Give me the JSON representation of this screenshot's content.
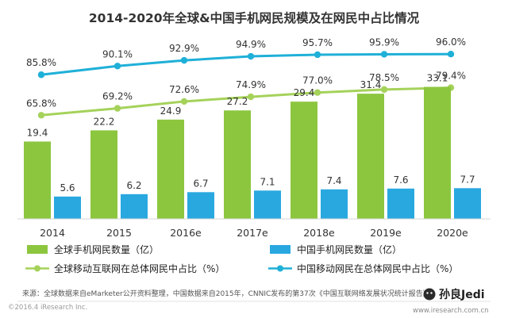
{
  "chart_data": {
    "type": "bar",
    "title": "2014-2020年全球&中国手机网民规模及在网民中占比情况",
    "categories": [
      "2014",
      "2015",
      "2016e",
      "2017e",
      "2018e",
      "2019e",
      "2020e"
    ],
    "series": [
      {
        "name": "全球手机网民数量（亿）",
        "kind": "bar",
        "color": "#8cc63f",
        "values": [
          19.4,
          22.2,
          24.9,
          27.2,
          29.4,
          31.4,
          33.1
        ],
        "labels": [
          "19.4",
          "22.2",
          "24.9",
          "27.2",
          "29.4",
          "31.4",
          "33.1"
        ]
      },
      {
        "name": "中国手机网民数量（亿）",
        "kind": "bar",
        "color": "#29a8e0",
        "values": [
          5.6,
          6.2,
          6.7,
          7.1,
          7.4,
          7.6,
          7.7
        ],
        "labels": [
          "5.6",
          "6.2",
          "6.7",
          "7.1",
          "7.4",
          "7.6",
          "7.7"
        ]
      },
      {
        "name": "全球移动互联网在总体网民中占比（%）",
        "kind": "line",
        "color": "#a5d25a",
        "values": [
          65.8,
          69.2,
          72.6,
          74.9,
          77.0,
          78.5,
          79.4
        ],
        "labels": [
          "65.8%",
          "69.2%",
          "72.6%",
          "74.9%",
          "77.0%",
          "78.5%",
          "79.4%"
        ]
      },
      {
        "name": "中国移动网民在总体网民中占比（%）",
        "kind": "line",
        "color": "#1fb0d8",
        "values": [
          85.8,
          90.1,
          92.9,
          94.9,
          95.7,
          95.9,
          96.0
        ],
        "labels": [
          "85.8%",
          "90.1%",
          "92.9%",
          "94.9%",
          "95.7%",
          "95.9%",
          "96.0%"
        ]
      }
    ],
    "bar_axis": {
      "label": "亿",
      "ylim": [
        0,
        36
      ]
    },
    "line_axis": {
      "label": "%",
      "ylim": [
        62,
        100
      ]
    },
    "legend_position": "bottom",
    "grid": false
  },
  "footer": {
    "source": "来源：全球数据来自eMarketer公开资料整理，中国数据来自2015年，CNNIC发布的第37次《中国互联网络发展状况统计报告》",
    "copyright": "©2016.4 iResearch Inc.",
    "website": "www.iresearch.com.cn",
    "watermark_brand": "孙良Jedi"
  }
}
